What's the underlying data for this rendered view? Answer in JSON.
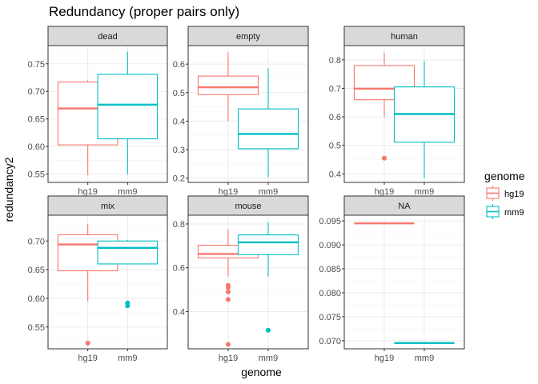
{
  "chart_data": {
    "type": "box",
    "title": "Redundancy (proper pairs only)",
    "xlabel": "genome",
    "ylabel": "redundancy2",
    "categories": [
      "hg19",
      "mm9"
    ],
    "legend": {
      "title": "genome",
      "placement": "right",
      "items": [
        {
          "label": "hg19",
          "color": "#F8766D"
        },
        {
          "label": "mm9",
          "color": "#00BFC4"
        }
      ]
    },
    "grid": true,
    "facets": [
      {
        "label": "dead",
        "ylim": [
          0.535,
          0.783
        ],
        "yticks": [
          0.55,
          0.6,
          0.65,
          0.7,
          0.75
        ],
        "ytick_labels": [
          "0.55",
          "0.60",
          "0.65",
          "0.70",
          "0.75"
        ],
        "boxes": [
          {
            "genome": "hg19",
            "whisker_low": 0.548,
            "q1": 0.603,
            "median": 0.669,
            "q3": 0.717,
            "whisker_high": 0.72,
            "outliers": []
          },
          {
            "genome": "mm9",
            "whisker_low": 0.55,
            "q1": 0.614,
            "median": 0.676,
            "q3": 0.731,
            "whisker_high": 0.772,
            "outliers": []
          }
        ]
      },
      {
        "label": "empty",
        "ylim": [
          0.185,
          0.665
        ],
        "yticks": [
          0.2,
          0.3,
          0.4,
          0.5,
          0.6
        ],
        "ytick_labels": [
          "0.2",
          "0.3",
          "0.4",
          "0.5",
          "0.6"
        ],
        "boxes": [
          {
            "genome": "hg19",
            "whisker_low": 0.4,
            "q1": 0.493,
            "median": 0.519,
            "q3": 0.558,
            "whisker_high": 0.641,
            "outliers": []
          },
          {
            "genome": "mm9",
            "whisker_low": 0.203,
            "q1": 0.303,
            "median": 0.355,
            "q3": 0.443,
            "whisker_high": 0.585,
            "outliers": []
          }
        ]
      },
      {
        "label": "human",
        "ylim": [
          0.37,
          0.85
        ],
        "yticks": [
          0.4,
          0.5,
          0.6,
          0.7,
          0.8
        ],
        "ytick_labels": [
          "0.4",
          "0.5",
          "0.6",
          "0.7",
          "0.8"
        ],
        "boxes": [
          {
            "genome": "hg19",
            "whisker_low": 0.6,
            "q1": 0.66,
            "median": 0.699,
            "q3": 0.78,
            "whisker_high": 0.825,
            "outliers": [
              0.455
            ]
          },
          {
            "genome": "mm9",
            "whisker_low": 0.385,
            "q1": 0.511,
            "median": 0.61,
            "q3": 0.705,
            "whisker_high": 0.796,
            "outliers": []
          }
        ]
      },
      {
        "label": "mix",
        "ylim": [
          0.512,
          0.745
        ],
        "yticks": [
          0.55,
          0.6,
          0.65,
          0.7
        ],
        "ytick_labels": [
          "0.55",
          "0.60",
          "0.65",
          "0.70"
        ],
        "boxes": [
          {
            "genome": "hg19",
            "whisker_low": 0.595,
            "q1": 0.648,
            "median": 0.694,
            "q3": 0.711,
            "whisker_high": 0.73,
            "outliers": [
              0.522
            ]
          },
          {
            "genome": "mm9",
            "whisker_low": 0.66,
            "q1": 0.66,
            "median": 0.688,
            "q3": 0.7,
            "whisker_high": 0.702,
            "outliers": [
              0.587,
              0.592
            ]
          }
        ]
      },
      {
        "label": "mouse",
        "ylim": [
          0.23,
          0.84
        ],
        "yticks": [
          0.4,
          0.6,
          0.8
        ],
        "ytick_labels": [
          "0.4",
          "0.6",
          "0.8"
        ],
        "boxes": [
          {
            "genome": "hg19",
            "whisker_low": 0.56,
            "q1": 0.645,
            "median": 0.663,
            "q3": 0.703,
            "whisker_high": 0.775,
            "outliers": [
              0.25,
              0.455,
              0.49,
              0.51,
              0.52
            ]
          },
          {
            "genome": "mm9",
            "whisker_low": 0.56,
            "q1": 0.66,
            "median": 0.716,
            "q3": 0.75,
            "whisker_high": 0.808,
            "outliers": [
              0.315
            ]
          }
        ]
      },
      {
        "label": "NA",
        "ylim": [
          0.0683,
          0.0962
        ],
        "yticks": [
          0.07,
          0.075,
          0.08,
          0.085,
          0.09,
          0.095
        ],
        "ytick_labels": [
          "0.070",
          "0.075",
          "0.080",
          "0.085",
          "0.090",
          "0.095"
        ],
        "boxes": [
          {
            "genome": "hg19",
            "whisker_low": 0.0945,
            "q1": 0.0945,
            "median": 0.0945,
            "q3": 0.0945,
            "whisker_high": 0.0945,
            "outliers": []
          },
          {
            "genome": "mm9",
            "whisker_low": 0.0695,
            "q1": 0.0695,
            "median": 0.0695,
            "q3": 0.0695,
            "whisker_high": 0.0695,
            "outliers": []
          }
        ]
      }
    ]
  },
  "colors": {
    "hg19": "#F8766D",
    "mm9": "#00BFC4",
    "strip_fill": "#D9D9D9",
    "grid_major": "#EBEBEB",
    "grid_minor": "#F5F5F5",
    "panel_border": "#333333",
    "axis_text": "#4D4D4D"
  }
}
